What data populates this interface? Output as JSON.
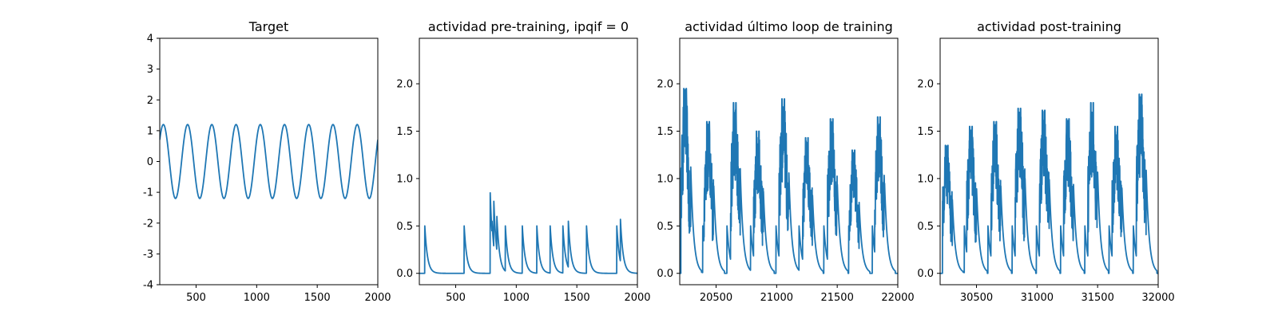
{
  "chart_data": [
    {
      "type": "line",
      "title": "Target",
      "xlabel": "",
      "ylabel": "",
      "xlim": [
        200,
        2000
      ],
      "ylim": [
        -4,
        4
      ],
      "xticks": [
        500,
        1000,
        1500,
        2000
      ],
      "yticks": [
        -4,
        -3,
        -2,
        -1,
        0,
        1,
        2,
        3,
        4
      ],
      "grid": false,
      "color": "#1f77b4",
      "series": [
        {
          "kind": "sine",
          "amplitude": 1.2,
          "period": 200,
          "peak_x": [
            230,
            430,
            630,
            830,
            1030,
            1230,
            1430,
            1630,
            1830
          ],
          "trough_x": [
            330,
            530,
            730,
            930,
            1130,
            1330,
            1530,
            1730,
            1930
          ],
          "y_at_2000": 0.4
        }
      ]
    },
    {
      "type": "line",
      "title": "actividad pre-training, ipqif = 0",
      "xlabel": "",
      "ylabel": "",
      "xlim": [
        200,
        2000
      ],
      "ylim": [
        -0.12,
        2.48
      ],
      "xticks": [
        500,
        1000,
        1500,
        2000
      ],
      "yticks": [
        0.0,
        0.5,
        1.0,
        1.5,
        2.0
      ],
      "grid": false,
      "color": "#1f77b4",
      "series": [
        {
          "kind": "decaying_spikes",
          "baseline": 0.0,
          "spikes": [
            {
              "x": 245,
              "peak": 0.5
            },
            {
              "x": 570,
              "peak": 0.5
            },
            {
              "x": 785,
              "peak": 0.85
            },
            {
              "x": 800,
              "peak": 0.55
            },
            {
              "x": 815,
              "peak": 0.76
            },
            {
              "x": 840,
              "peak": 0.6
            },
            {
              "x": 910,
              "peak": 0.5
            },
            {
              "x": 1050,
              "peak": 0.5
            },
            {
              "x": 1170,
              "peak": 0.5
            },
            {
              "x": 1280,
              "peak": 0.5
            },
            {
              "x": 1385,
              "peak": 0.5
            },
            {
              "x": 1430,
              "peak": 0.55
            },
            {
              "x": 1580,
              "peak": 0.5
            },
            {
              "x": 1830,
              "peak": 0.5
            },
            {
              "x": 1860,
              "peak": 0.57
            }
          ]
        }
      ]
    },
    {
      "type": "line",
      "title": "actividad último loop de training",
      "xlabel": "",
      "ylabel": "",
      "xlim": [
        20200,
        22000
      ],
      "ylim": [
        -0.12,
        2.48
      ],
      "xticks": [
        20500,
        21000,
        21500,
        22000
      ],
      "yticks": [
        0.0,
        0.5,
        1.0,
        1.5,
        2.0
      ],
      "grid": false,
      "color": "#1f77b4",
      "series": [
        {
          "kind": "spike_bursts",
          "baseline": 0.0,
          "single_spikes": [
            20290,
            20390,
            20590,
            20785,
            20995,
            21185,
            21390,
            21595,
            21790
          ],
          "single_peak": 0.5,
          "bursts": [
            {
              "start": 20210,
              "end": 20290,
              "max": 1.95
            },
            {
              "start": 20400,
              "end": 20480,
              "max": 1.6
            },
            {
              "start": 20620,
              "end": 20700,
              "max": 1.8
            },
            {
              "start": 20810,
              "end": 20890,
              "max": 1.5
            },
            {
              "start": 21020,
              "end": 21100,
              "max": 1.84
            },
            {
              "start": 21215,
              "end": 21295,
              "max": 1.43
            },
            {
              "start": 21420,
              "end": 21500,
              "max": 1.63
            },
            {
              "start": 21600,
              "end": 21680,
              "max": 1.3
            },
            {
              "start": 21810,
              "end": 21890,
              "max": 1.65
            }
          ]
        }
      ]
    },
    {
      "type": "line",
      "title": "actividad post-training",
      "xlabel": "",
      "ylabel": "",
      "xlim": [
        30200,
        32000
      ],
      "ylim": [
        -0.12,
        2.48
      ],
      "xticks": [
        30500,
        31000,
        31500,
        32000
      ],
      "yticks": [
        0.0,
        0.5,
        1.0,
        1.5,
        2.0
      ],
      "grid": false,
      "color": "#1f77b4",
      "series": [
        {
          "kind": "spike_bursts",
          "baseline": 0.0,
          "single_spikes": [
            30300,
            30400,
            30595,
            30795,
            30995,
            31195,
            31395,
            31595,
            31795
          ],
          "single_peak": 0.5,
          "bursts": [
            {
              "start": 30220,
              "end": 30300,
              "max": 1.35
            },
            {
              "start": 30420,
              "end": 30500,
              "max": 1.55
            },
            {
              "start": 30620,
              "end": 30700,
              "max": 1.6
            },
            {
              "start": 30820,
              "end": 30900,
              "max": 1.74
            },
            {
              "start": 31020,
              "end": 31100,
              "max": 1.72
            },
            {
              "start": 31220,
              "end": 31300,
              "max": 1.63
            },
            {
              "start": 31420,
              "end": 31500,
              "max": 1.8
            },
            {
              "start": 31620,
              "end": 31700,
              "max": 1.55
            },
            {
              "start": 31820,
              "end": 31900,
              "max": 1.89
            }
          ]
        }
      ]
    }
  ]
}
